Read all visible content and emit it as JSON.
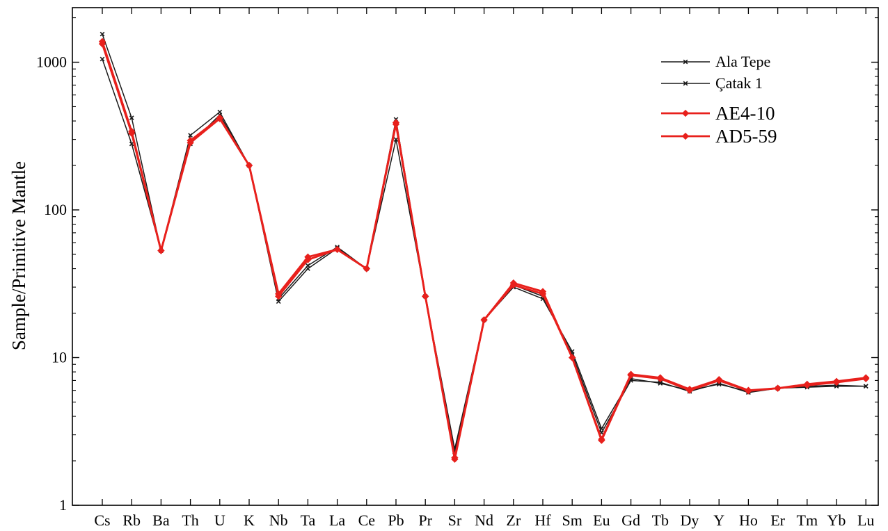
{
  "chart_data": {
    "type": "line",
    "ylabel": "Sample/Primitive Mantle",
    "yscale": "log",
    "ylim": [
      1,
      2200
    ],
    "yticks": [
      1,
      10,
      100,
      1000
    ],
    "ytick_labels": [
      "1",
      "10",
      "100",
      "1000"
    ],
    "grid": false,
    "legend_position": "top-right",
    "categories": [
      "Cs",
      "Rb",
      "Ba",
      "Th",
      "U",
      "K",
      "Nb",
      "Ta",
      "La",
      "Ce",
      "Pb",
      "Pr",
      "Sr",
      "Nd",
      "Zr",
      "Hf",
      "Sm",
      "Eu",
      "Gd",
      "Tb",
      "Dy",
      "Y",
      "Ho",
      "Er",
      "Tm",
      "Yb",
      "Lu"
    ],
    "series": [
      {
        "name": "Ala Tepe",
        "color": "#1a1a1a",
        "marker": "x",
        "values": [
          1550,
          420,
          53,
          320,
          460,
          200,
          25,
          42,
          56,
          40,
          300,
          26,
          2.4,
          18,
          30,
          25,
          11,
          3.3,
          7.2,
          6.7,
          6.0,
          6.6,
          5.9,
          6.2,
          6.3,
          6.4,
          6.4
        ]
      },
      {
        "name": "Çatak 1",
        "color": "#1a1a1a",
        "marker": "x",
        "values": [
          1050,
          280,
          53,
          280,
          440,
          200,
          24,
          40,
          55,
          40,
          410,
          26,
          2.3,
          18,
          31,
          26,
          10.5,
          3.1,
          7.0,
          6.8,
          5.9,
          6.7,
          5.8,
          6.2,
          6.4,
          6.5,
          6.4
        ]
      },
      {
        "name": "AE4-10",
        "color": "#e8201c",
        "marker": "diamond",
        "values": [
          1380,
          340,
          53,
          295,
          420,
          200,
          27,
          48,
          54,
          40,
          390,
          26,
          2.05,
          18,
          32,
          28,
          10,
          2.8,
          7.7,
          7.3,
          6.1,
          7.1,
          6.0,
          6.2,
          6.6,
          6.9,
          7.3
        ]
      },
      {
        "name": "AD5-59",
        "color": "#e8201c",
        "marker": "diamond",
        "values": [
          1330,
          330,
          53,
          285,
          415,
          200,
          26,
          46,
          54,
          40,
          380,
          26,
          2.1,
          18,
          31,
          27,
          10,
          2.75,
          7.6,
          7.2,
          6.0,
          7.0,
          5.95,
          6.2,
          6.5,
          6.8,
          7.2
        ]
      }
    ]
  }
}
